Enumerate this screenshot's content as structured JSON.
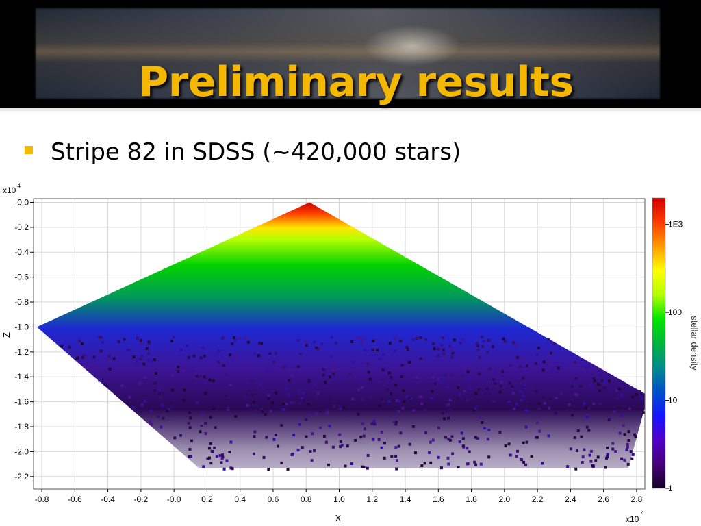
{
  "slide": {
    "title": "Preliminary results",
    "bullet": "Stripe 82 in SDSS (~420,000 stars)"
  },
  "chart_data": {
    "type": "heatmap",
    "title": "",
    "xlabel": "X",
    "ylabel": "Z",
    "x_multiplier": "x10",
    "y_multiplier": "x10",
    "exponent": "4",
    "xlim": [
      -0.85,
      2.85
    ],
    "ylim": [
      -2.3,
      0.03
    ],
    "x_ticks": [
      "-0.8",
      "-0.6",
      "-0.4",
      "-0.2",
      "-0.0",
      "0.2",
      "0.4",
      "0.6",
      "0.8",
      "1.0",
      "1.2",
      "1.4",
      "1.6",
      "1.8",
      "2.0",
      "2.2",
      "2.4",
      "2.6",
      "2.8"
    ],
    "y_ticks": [
      "-0.0",
      "-0.2",
      "-0.4",
      "-0.6",
      "-0.8",
      "-1.0",
      "-1.2",
      "-1.4",
      "-1.6",
      "-1.8",
      "-2.0",
      "-2.2"
    ],
    "grid": true,
    "region": [
      [
        0.82,
        0.0
      ],
      [
        -0.83,
        -1.0
      ],
      [
        0.15,
        -2.13
      ],
      [
        2.75,
        -2.13
      ],
      [
        2.87,
        -1.55
      ]
    ],
    "colorbar": {
      "label": "stellar density",
      "scale": "log",
      "range": [
        1,
        2000
      ],
      "ticks": [
        "1E3",
        "100",
        "10",
        "1"
      ],
      "colors": [
        "#d40000",
        "#ff3a00",
        "#ff9c00",
        "#ffff00",
        "#b4ff00",
        "#00e600",
        "#00b43c",
        "#008c8c",
        "#0050c8",
        "#1414ff",
        "#5000c8",
        "#460078",
        "#140028"
      ]
    }
  }
}
